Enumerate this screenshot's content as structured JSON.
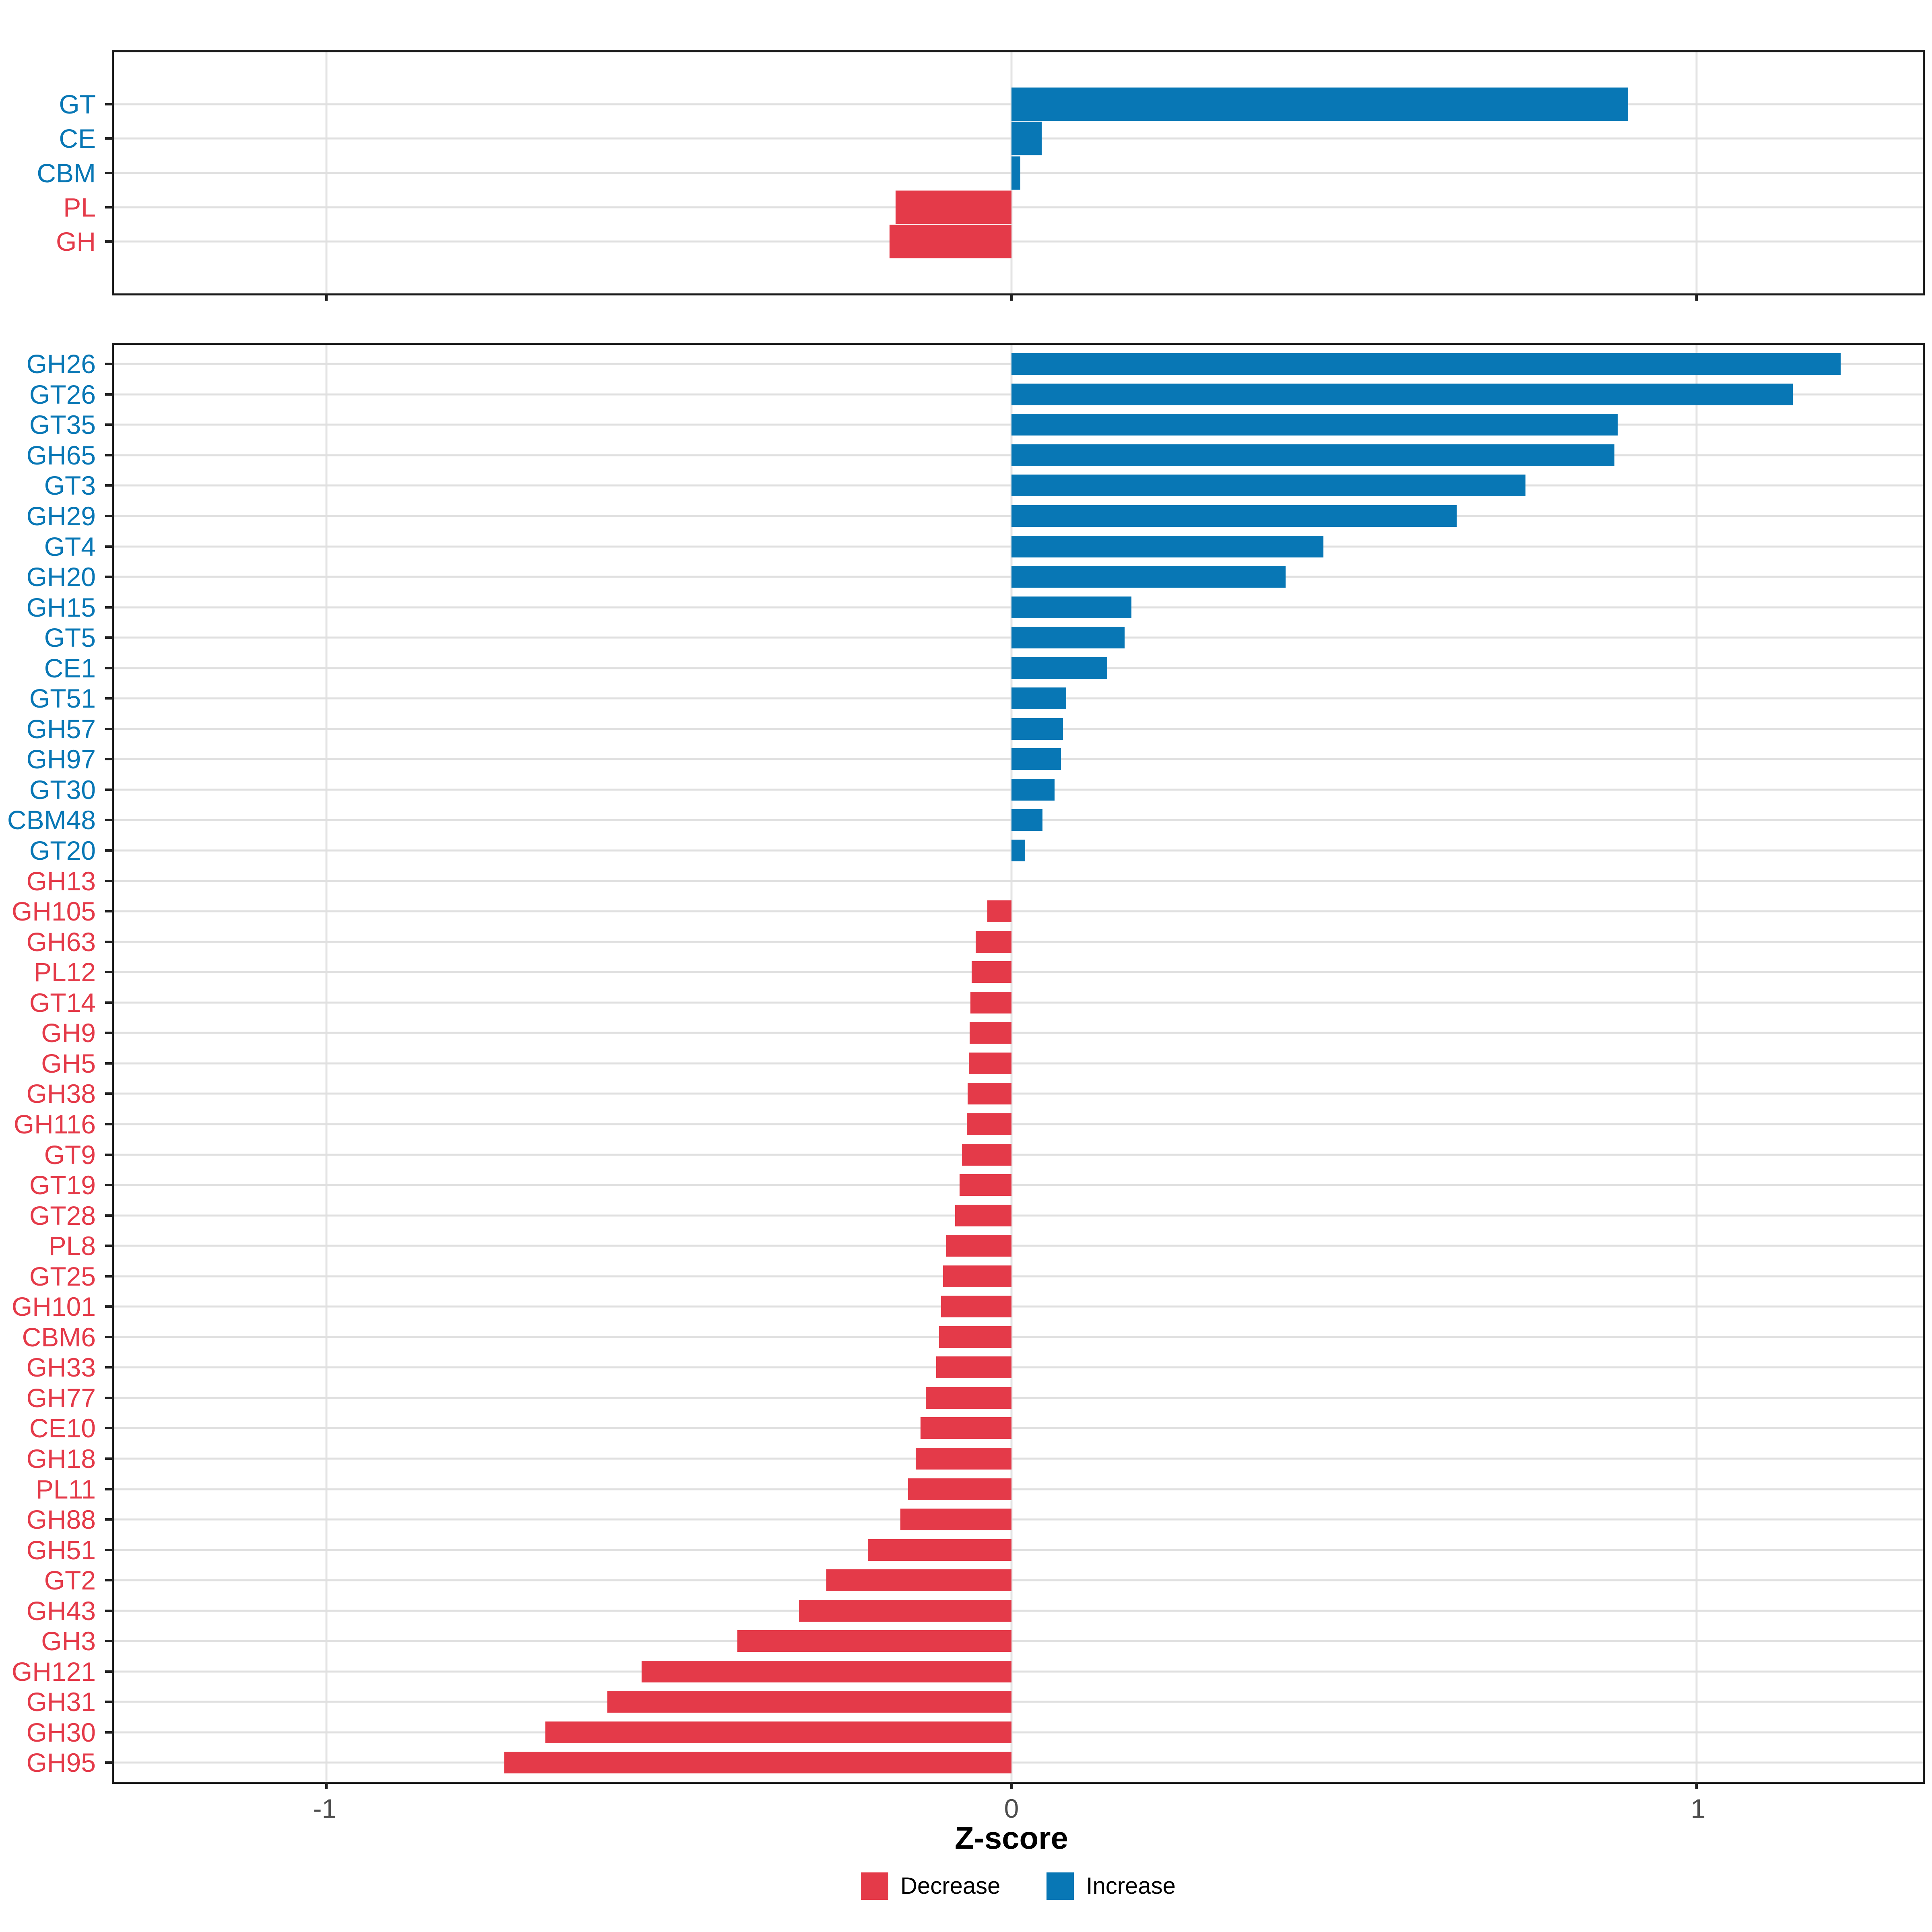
{
  "figure": {
    "xlabel": "Z-score",
    "x_ticks": [
      {
        "label": "-1",
        "value": -1
      },
      {
        "label": "0",
        "value": 0
      },
      {
        "label": "1",
        "value": 1
      }
    ],
    "xlim": [
      -1.31,
      1.33
    ],
    "legend": {
      "items": [
        {
          "label": "Decrease",
          "color": "#E43A49"
        },
        {
          "label": "Increase",
          "color": "#0877B5"
        }
      ]
    },
    "colors": {
      "increase": "#0877B5",
      "decrease": "#E43A49",
      "gridline": "#E0E0E0",
      "axis": "#1A1A1A",
      "tick_label": "#4D4D4D"
    }
  },
  "chart_data": [
    {
      "type": "bar",
      "orientation": "horizontal",
      "panel": "top",
      "xlabel": "Z-score",
      "xlim": [
        -1.31,
        1.33
      ],
      "x_tick_values": [
        -1,
        0,
        1
      ],
      "grid": true,
      "categories": [
        "GT",
        "CE",
        "CBM",
        "PL",
        "GH"
      ],
      "values": [
        0.9,
        0.044,
        0.013,
        -0.169,
        -0.178
      ],
      "directions": [
        "Increase",
        "Increase",
        "Increase",
        "Decrease",
        "Decrease"
      ]
    },
    {
      "type": "bar",
      "orientation": "horizontal",
      "panel": "bottom",
      "xlabel": "Z-score",
      "xlim": [
        -1.31,
        1.33
      ],
      "x_tick_values": [
        -1,
        0,
        1
      ],
      "grid": true,
      "categories": [
        "GH26",
        "GT26",
        "GT35",
        "GH65",
        "GT3",
        "GH29",
        "GT4",
        "GH20",
        "GH15",
        "GT5",
        "CE1",
        "GT51",
        "GH57",
        "GH97",
        "GT30",
        "CBM48",
        "GT20",
        "GH13",
        "GH105",
        "GH63",
        "PL12",
        "GT14",
        "GH9",
        "GH5",
        "GH38",
        "GH116",
        "GT9",
        "GT19",
        "GT28",
        "PL8",
        "GT25",
        "GH101",
        "CBM6",
        "GH33",
        "GH77",
        "CE10",
        "GH18",
        "PL11",
        "GH88",
        "GH51",
        "GT2",
        "GH43",
        "GH3",
        "GH121",
        "GH31",
        "GH30",
        "GH95"
      ],
      "values": [
        1.21,
        1.14,
        0.885,
        0.88,
        0.75,
        0.65,
        0.455,
        0.4,
        0.175,
        0.165,
        0.14,
        0.08,
        0.075,
        0.072,
        0.063,
        0.045,
        0.02,
        0,
        -0.035,
        -0.052,
        -0.058,
        -0.06,
        -0.061,
        -0.062,
        -0.064,
        -0.065,
        -0.072,
        -0.076,
        -0.082,
        -0.095,
        -0.1,
        -0.103,
        -0.106,
        -0.11,
        -0.125,
        -0.133,
        -0.14,
        -0.151,
        -0.162,
        -0.21,
        -0.27,
        -0.31,
        -0.4,
        -0.54,
        -0.59,
        -0.68,
        -0.74
      ],
      "directions": [
        "Increase",
        "Increase",
        "Increase",
        "Increase",
        "Increase",
        "Increase",
        "Increase",
        "Increase",
        "Increase",
        "Increase",
        "Increase",
        "Increase",
        "Increase",
        "Increase",
        "Increase",
        "Increase",
        "Increase",
        "Decrease",
        "Decrease",
        "Decrease",
        "Decrease",
        "Decrease",
        "Decrease",
        "Decrease",
        "Decrease",
        "Decrease",
        "Decrease",
        "Decrease",
        "Decrease",
        "Decrease",
        "Decrease",
        "Decrease",
        "Decrease",
        "Decrease",
        "Decrease",
        "Decrease",
        "Decrease",
        "Decrease",
        "Decrease",
        "Decrease",
        "Decrease",
        "Decrease",
        "Decrease",
        "Decrease",
        "Decrease",
        "Decrease",
        "Decrease"
      ]
    }
  ]
}
